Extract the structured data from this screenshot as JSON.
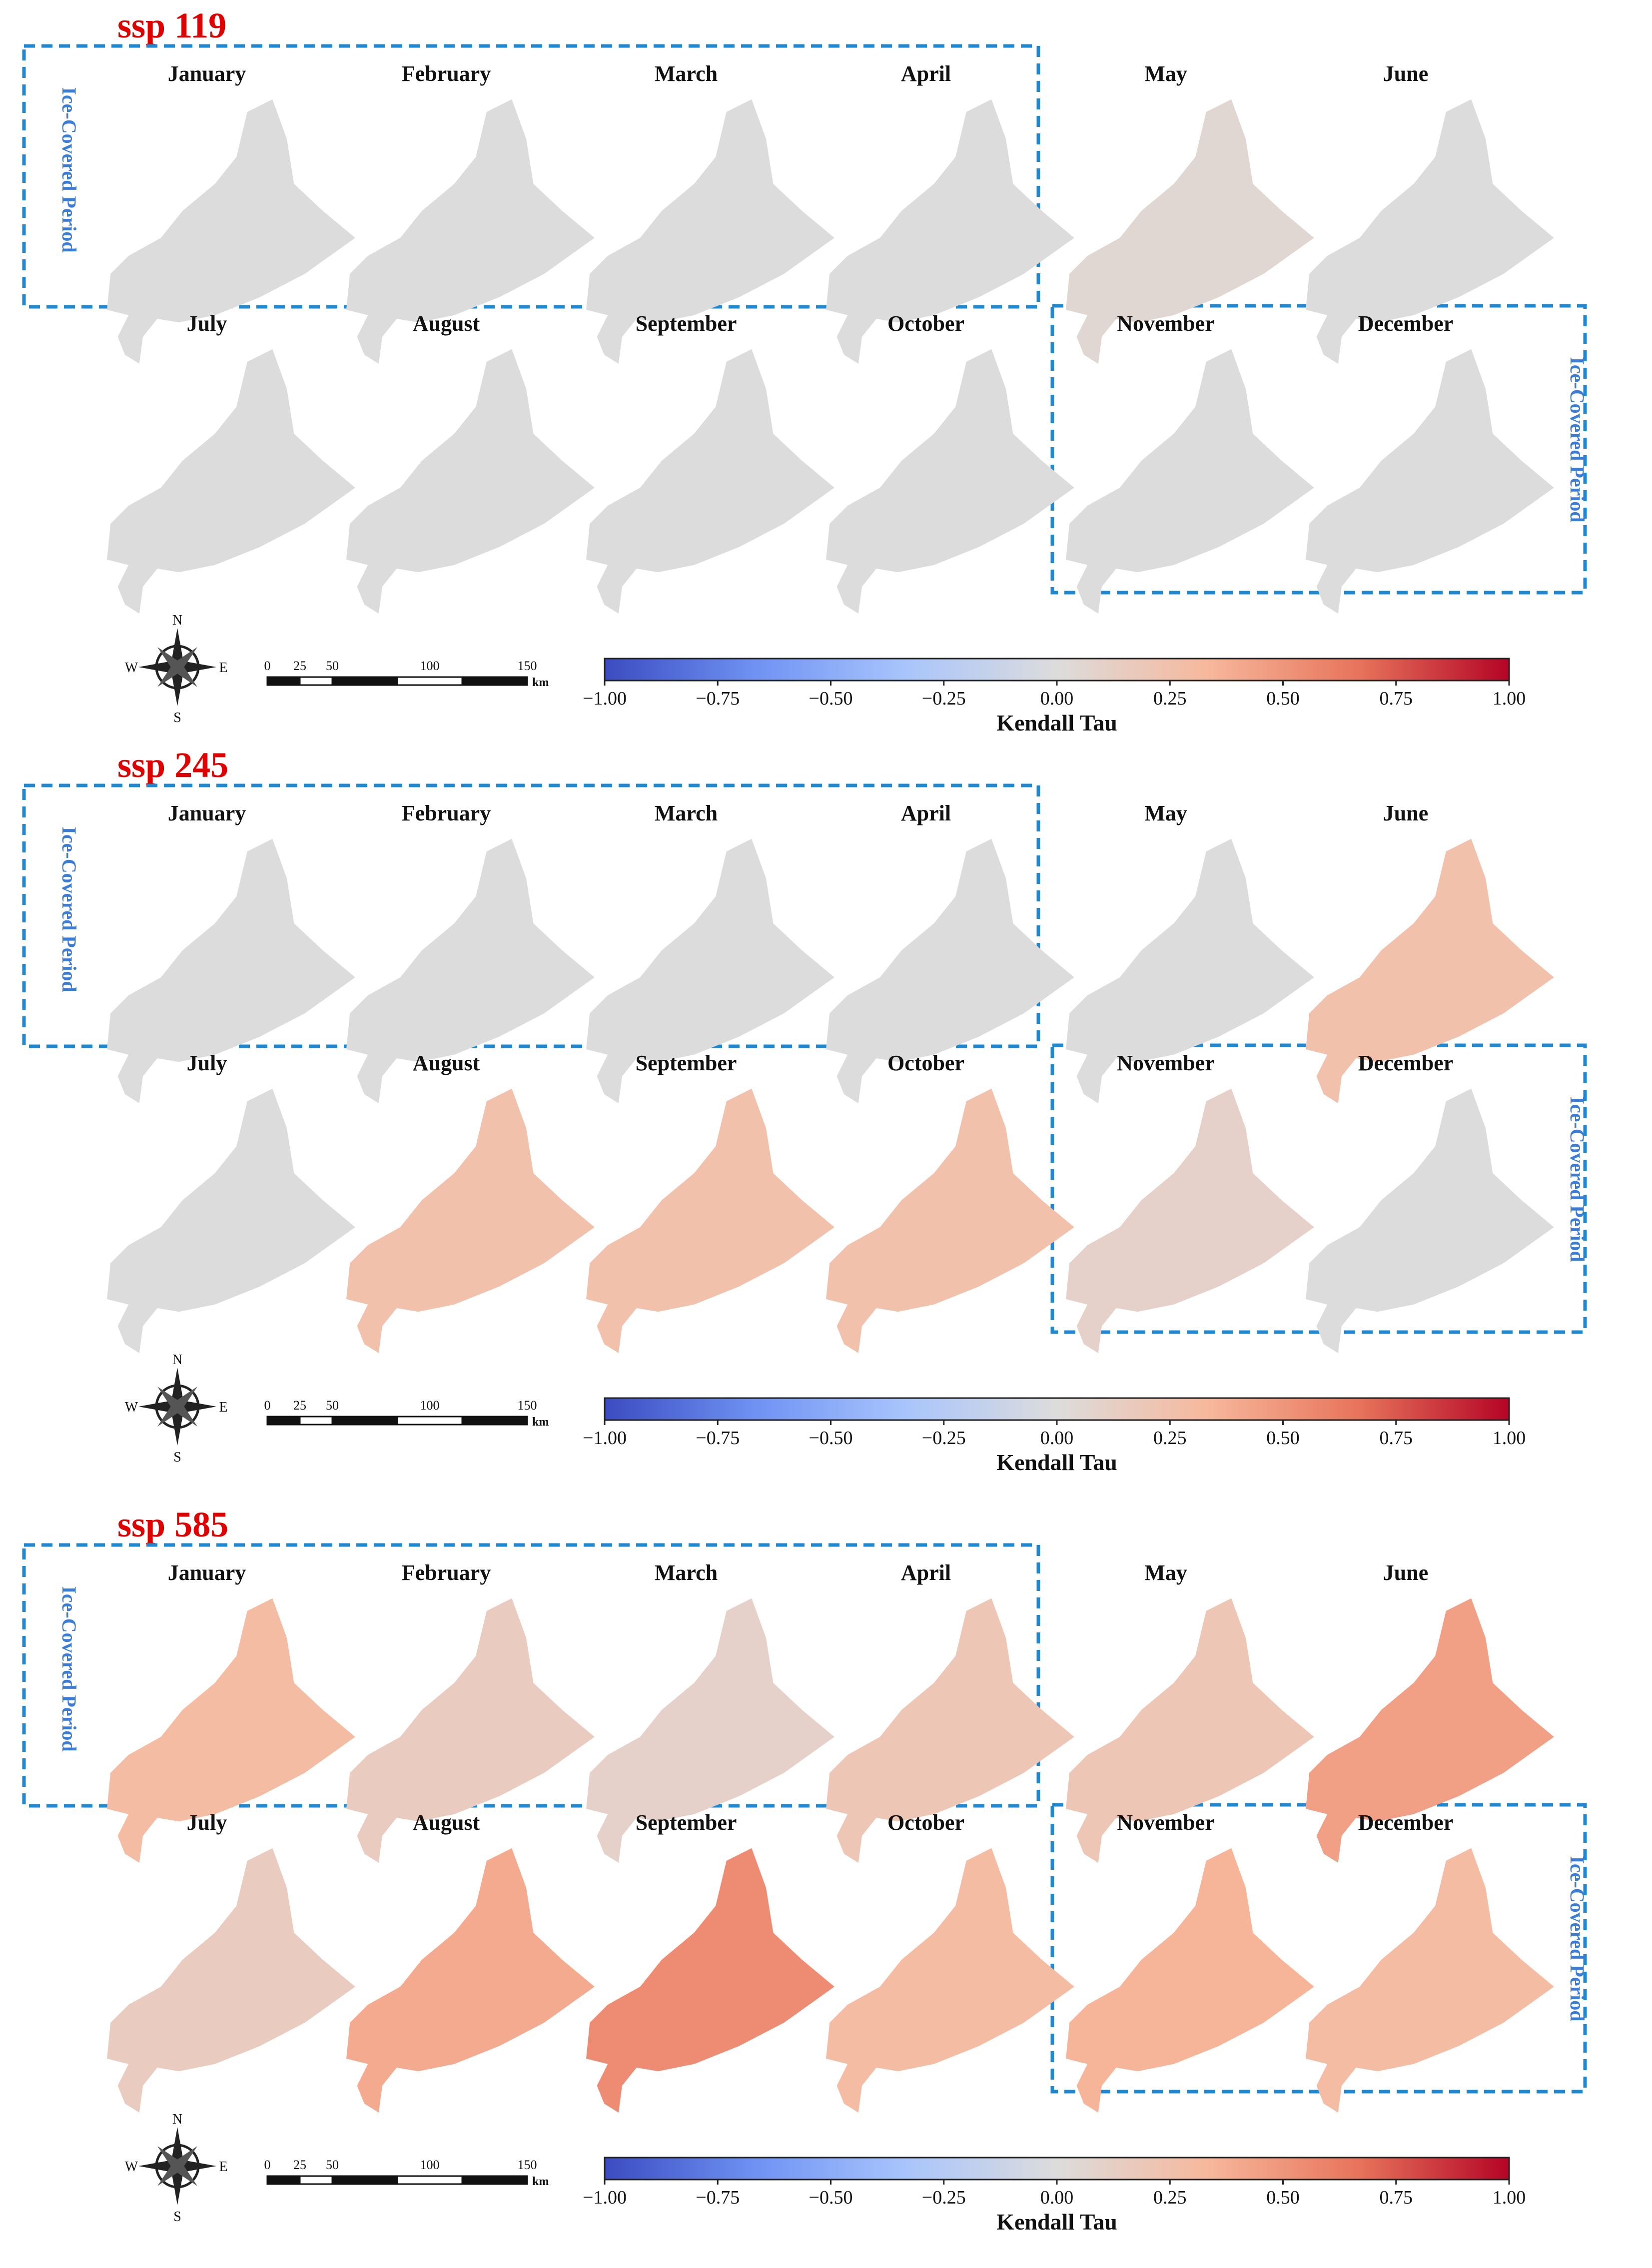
{
  "figure": {
    "colorbar": {
      "label": "Kendall Tau",
      "ticks": [
        "−1.00",
        "−0.75",
        "−0.50",
        "−0.25",
        "0.00",
        "0.25",
        "0.50",
        "0.75",
        "1.00"
      ],
      "colors": [
        "#3b4cc0",
        "#6f92f3",
        "#a9c5fc",
        "#dddcdc",
        "#f7b89c",
        "#e7745b",
        "#b40426"
      ]
    },
    "scalebar": {
      "ticks": [
        "0",
        "25",
        "50",
        "100",
        "150"
      ],
      "unit": "km"
    },
    "compass": {
      "n": "N",
      "s": "S",
      "e": "E",
      "w": "W"
    },
    "ice_label": "Ice-Covered Period",
    "months": [
      "January",
      "February",
      "March",
      "April",
      "May",
      "June",
      "July",
      "August",
      "September",
      "October",
      "November",
      "December"
    ]
  },
  "chart_data": [
    {
      "type": "heatmap",
      "title": "ssp 119",
      "colorbar_label": "Kendall Tau",
      "vmin": -1.0,
      "vmax": 1.0,
      "ice_covered_months": [
        "January",
        "February",
        "March",
        "April",
        "November",
        "December"
      ],
      "dominant_tau": [
        0.0,
        0.0,
        0.0,
        0.0,
        0.05,
        0.0,
        0.0,
        0.0,
        0.0,
        0.0,
        0.0,
        0.0
      ]
    },
    {
      "type": "heatmap",
      "title": "ssp 245",
      "colorbar_label": "Kendall Tau",
      "vmin": -1.0,
      "vmax": 1.0,
      "ice_covered_months": [
        "January",
        "February",
        "March",
        "April",
        "November",
        "December"
      ],
      "dominant_tau": [
        0.0,
        0.0,
        0.0,
        0.0,
        0.0,
        0.25,
        0.0,
        0.25,
        0.25,
        0.25,
        0.1,
        0.0
      ]
    },
    {
      "type": "heatmap",
      "title": "ssp 585",
      "colorbar_label": "Kendall Tau",
      "vmin": -1.0,
      "vmax": 1.0,
      "ice_covered_months": [
        "January",
        "February",
        "March",
        "April",
        "November",
        "December"
      ],
      "dominant_tau": [
        0.3,
        0.15,
        0.1,
        0.2,
        0.2,
        0.45,
        0.15,
        0.4,
        0.55,
        0.3,
        0.35,
        0.3
      ]
    }
  ]
}
